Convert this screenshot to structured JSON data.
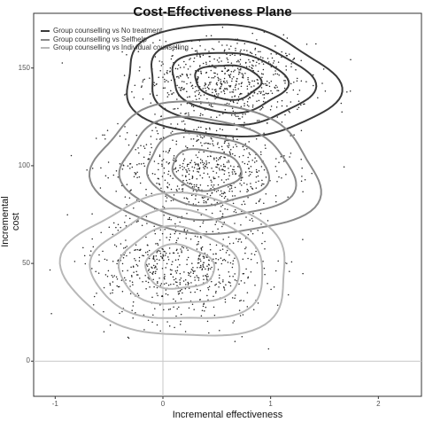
{
  "chart_data": {
    "type": "scatter",
    "title": "Cost-Effectiveness Plane",
    "xlabel": "Incremental effectiveness",
    "ylabel": "Incremental cost",
    "xlim": [
      -1.2,
      2.4
    ],
    "ylim": [
      -18,
      178
    ],
    "x_ticks": [
      {
        "v": -1,
        "label": "-1"
      },
      {
        "v": 0,
        "label": "0"
      },
      {
        "v": 1,
        "label": "1"
      },
      {
        "v": 2,
        "label": "2"
      }
    ],
    "y_ticks": [
      {
        "v": 0,
        "label": "0"
      },
      {
        "v": 50,
        "label": "50"
      },
      {
        "v": 100,
        "label": "100"
      },
      {
        "v": 150,
        "label": "150"
      }
    ],
    "grid": false,
    "reference_lines": {
      "x": 0,
      "y": 0
    },
    "legend_position": "top-left",
    "series": [
      {
        "name": "Group counselling vs No treatment",
        "color": "#3a3a3a",
        "center": [
          0.6,
          143
        ],
        "sd": [
          0.38,
          11
        ],
        "rho": -0.1,
        "n": 650
      },
      {
        "name": "Group counselling vs Selfhelp",
        "color": "#8a8a8a",
        "center": [
          0.4,
          98
        ],
        "sd": [
          0.4,
          13
        ],
        "rho": -0.1,
        "n": 650
      },
      {
        "name": "Group counselling vs Individual counselling",
        "color": "#b8b8b8",
        "center": [
          0.15,
          48
        ],
        "sd": [
          0.4,
          14
        ],
        "rho": -0.05,
        "n": 650
      }
    ]
  }
}
